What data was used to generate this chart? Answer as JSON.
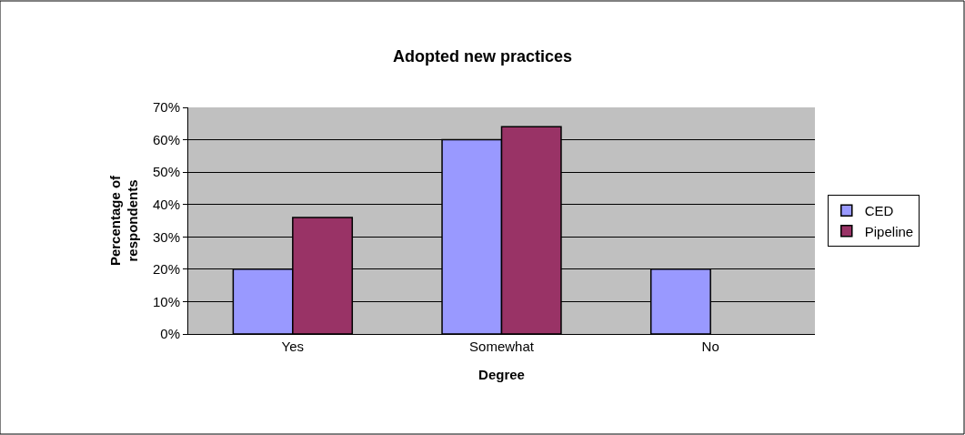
{
  "chart_data": {
    "type": "bar",
    "title": "Adopted new practices",
    "xlabel": "Degree",
    "ylabel": "Percentage of respondents",
    "categories": [
      "Yes",
      "Somewhat",
      "No"
    ],
    "series": [
      {
        "name": "CED",
        "color": "#9999ff",
        "values": [
          20,
          60,
          20
        ]
      },
      {
        "name": "Pipeline",
        "color": "#993366",
        "values": [
          36,
          64,
          null
        ]
      }
    ],
    "ylim": [
      0,
      70
    ],
    "yticks": [
      {
        "value": 0,
        "label": "0%"
      },
      {
        "value": 10,
        "label": "10%"
      },
      {
        "value": 20,
        "label": "20%"
      },
      {
        "value": 30,
        "label": "30%"
      },
      {
        "value": 40,
        "label": "40%"
      },
      {
        "value": 50,
        "label": "50%"
      },
      {
        "value": 60,
        "label": "60%"
      },
      {
        "value": 70,
        "label": "70%"
      }
    ],
    "grid": "y",
    "legend": "right"
  }
}
